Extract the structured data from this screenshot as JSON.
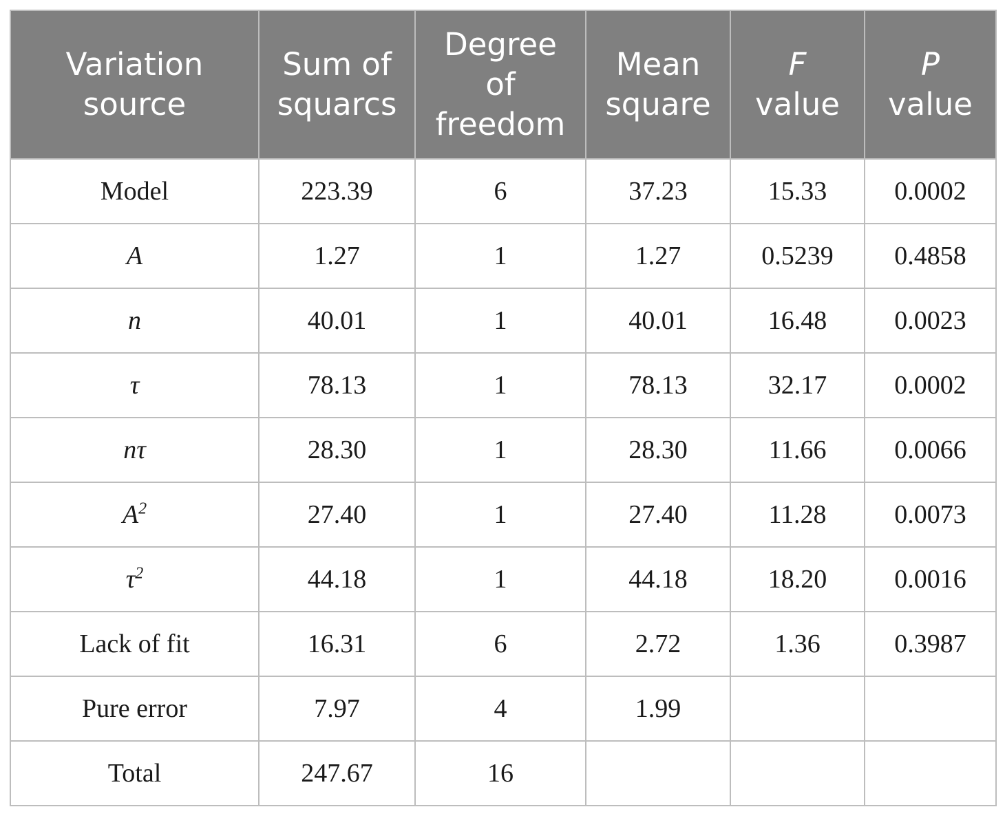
{
  "table": {
    "headers": [
      {
        "lines": [
          "Variation",
          "source"
        ]
      },
      {
        "lines": [
          "Sum of",
          "squarcs"
        ]
      },
      {
        "lines": [
          "Degree",
          "of",
          "freedom"
        ]
      },
      {
        "lines": [
          "Mean",
          "square"
        ]
      },
      {
        "lines": [
          "F",
          "value"
        ],
        "italic_first": true
      },
      {
        "lines": [
          "P",
          "value"
        ],
        "italic_first": true
      }
    ],
    "rows": [
      {
        "source": "Model",
        "source_italic": false,
        "sum_sq": "223.39",
        "df": "6",
        "mean_sq": "37.23",
        "f": "15.33",
        "p": "0.0002"
      },
      {
        "source": "A",
        "source_italic": true,
        "sum_sq": "1.27",
        "df": "1",
        "mean_sq": "1.27",
        "f": "0.5239",
        "p": "0.4858"
      },
      {
        "source": "n",
        "source_italic": true,
        "sum_sq": "40.01",
        "df": "1",
        "mean_sq": "40.01",
        "f": "16.48",
        "p": "0.0023"
      },
      {
        "source": "τ",
        "source_italic": true,
        "sum_sq": "78.13",
        "df": "1",
        "mean_sq": "78.13",
        "f": "32.17",
        "p": "0.0002"
      },
      {
        "source": "nτ",
        "source_italic": true,
        "sum_sq": "28.30",
        "df": "1",
        "mean_sq": "28.30",
        "f": "11.66",
        "p": "0.0066"
      },
      {
        "source": "A",
        "sup": "2",
        "source_italic": true,
        "sum_sq": "27.40",
        "df": "1",
        "mean_sq": "27.40",
        "f": "11.28",
        "p": "0.0073"
      },
      {
        "source": "τ",
        "sup": "2",
        "source_italic": true,
        "sum_sq": "44.18",
        "df": "1",
        "mean_sq": "44.18",
        "f": "18.20",
        "p": "0.0016"
      },
      {
        "source": "Lack of fit",
        "source_italic": false,
        "sum_sq": "16.31",
        "df": "6",
        "mean_sq": "2.72",
        "f": "1.36",
        "p": "0.3987"
      },
      {
        "source": "Pure error",
        "source_italic": false,
        "sum_sq": "7.97",
        "df": "4",
        "mean_sq": "1.99",
        "f": "",
        "p": ""
      },
      {
        "source": "Total",
        "source_italic": false,
        "sum_sq": "247.67",
        "df": "16",
        "mean_sq": "",
        "f": "",
        "p": ""
      }
    ]
  }
}
